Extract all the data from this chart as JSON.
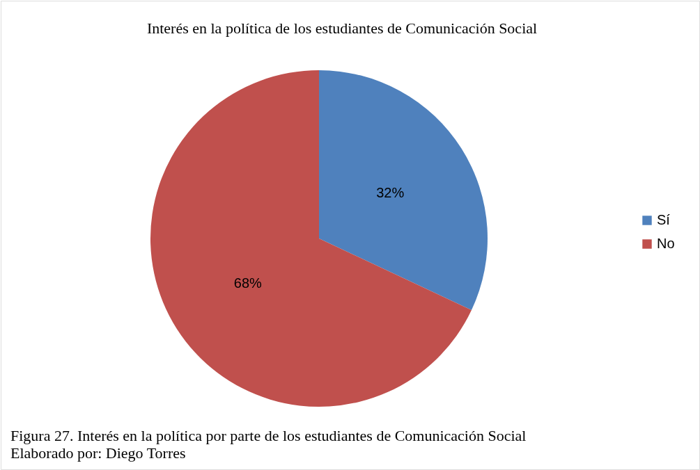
{
  "chart_data": {
    "type": "pie",
    "title": "Interés en la política de los estudiantes de Comunicación Social",
    "categories": [
      "Sí",
      "No"
    ],
    "values": [
      32,
      68
    ],
    "colors": [
      "#4f81bd",
      "#c0504d"
    ],
    "value_labels": [
      "32%",
      "68%"
    ],
    "legend": "right",
    "annotations": [
      "Figura 27. Interés en la política por parte de los estudiantes de Comunicación Social",
      "Elaborado por: Diego Torres"
    ]
  }
}
